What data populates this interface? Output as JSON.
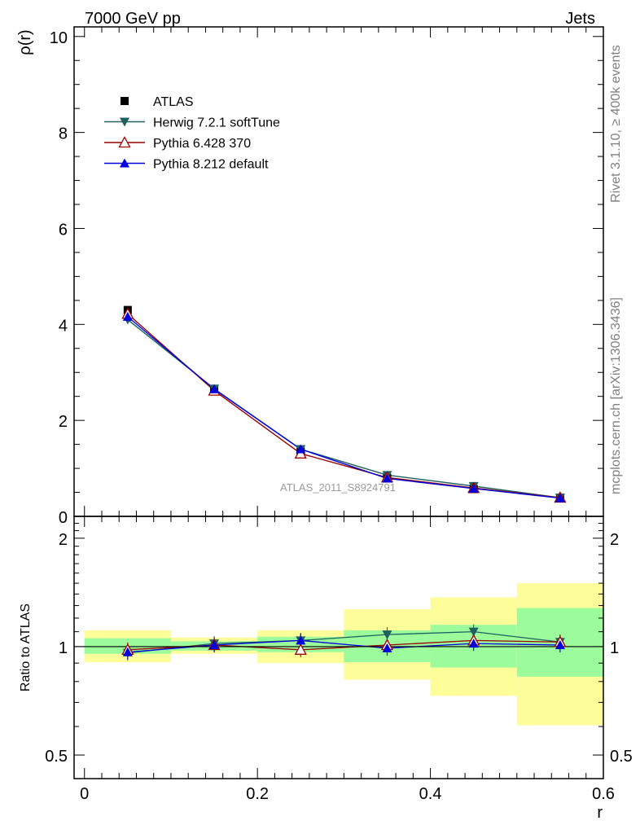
{
  "header": {
    "left": "7000 GeV pp",
    "right": "Jets"
  },
  "side_text": {
    "rivet": "Rivet 3.1.10, ≥ 400k events",
    "mcplots": "mcplots.cern.ch [arXiv:1306.3436]"
  },
  "watermark": "ATLAS_2011_S8924791",
  "colors": {
    "atlas": "#000000",
    "herwig": "#1f6060",
    "pythia6": "#9b0000",
    "pythia8": "#0000dd",
    "band_inner": "#9cfc9c",
    "band_outer": "#fdfd9a"
  },
  "chart_data": [
    {
      "type": "line",
      "name": "main",
      "title": "",
      "xlabel": "",
      "ylabel": "ρ(r)",
      "xlim": [
        -0.012,
        0.6
      ],
      "ylim": [
        0,
        10.2
      ],
      "yticks": [
        0,
        2,
        4,
        6,
        8,
        10
      ],
      "ytick_labels": [
        "0",
        "2",
        "4",
        "6",
        "8",
        "10"
      ],
      "legend_position": "top-left",
      "x": [
        0.05,
        0.15,
        0.25,
        0.35,
        0.45,
        0.55
      ],
      "x_bins": [
        [
          0.0,
          0.1
        ],
        [
          0.1,
          0.2
        ],
        [
          0.2,
          0.3
        ],
        [
          0.3,
          0.4
        ],
        [
          0.4,
          0.5
        ],
        [
          0.5,
          0.6
        ]
      ],
      "series": [
        {
          "key": "atlas",
          "name": "ATLAS",
          "marker": "square",
          "values": [
            4.3,
            2.62,
            1.35,
            0.8,
            0.57,
            0.38
          ]
        },
        {
          "key": "herwig",
          "name": "Herwig 7.2.1 softTune",
          "marker": "triangle-down",
          "values": [
            4.1,
            2.66,
            1.4,
            0.86,
            0.63,
            0.39
          ]
        },
        {
          "key": "pythia6",
          "name": "Pythia 6.428 370",
          "marker": "triangle-up-open",
          "values": [
            4.22,
            2.62,
            1.31,
            0.81,
            0.59,
            0.39
          ]
        },
        {
          "key": "pythia8",
          "name": "Pythia 8.212 default",
          "marker": "triangle-up",
          "values": [
            4.16,
            2.65,
            1.4,
            0.79,
            0.58,
            0.38
          ]
        }
      ]
    },
    {
      "type": "line",
      "name": "ratio",
      "xlabel": "r",
      "ylabel": "Ratio to ATLAS",
      "xlim": [
        -0.012,
        0.6
      ],
      "ylim": [
        0.43,
        2.3
      ],
      "yscale": "log",
      "xticks": [
        0,
        0.2,
        0.4,
        0.6
      ],
      "xtick_labels": [
        "0",
        "0.2",
        "0.4",
        "0.6"
      ],
      "yticks": [
        0.5,
        1,
        2
      ],
      "ytick_labels": [
        "0.5",
        "1",
        "2"
      ],
      "x": [
        0.05,
        0.15,
        0.25,
        0.35,
        0.45,
        0.55
      ],
      "x_bins": [
        [
          0.0,
          0.1
        ],
        [
          0.1,
          0.2
        ],
        [
          0.2,
          0.3
        ],
        [
          0.3,
          0.4
        ],
        [
          0.4,
          0.5
        ],
        [
          0.5,
          0.6
        ]
      ],
      "band_inner": [
        [
          0.955,
          1.055
        ],
        [
          0.975,
          1.035
        ],
        [
          0.965,
          1.065
        ],
        [
          0.905,
          1.11
        ],
        [
          0.875,
          1.15
        ],
        [
          0.825,
          1.28
        ]
      ],
      "band_outer": [
        [
          0.905,
          1.11
        ],
        [
          0.955,
          1.06
        ],
        [
          0.9,
          1.11
        ],
        [
          0.81,
          1.27
        ],
        [
          0.73,
          1.37
        ],
        [
          0.605,
          1.5
        ]
      ],
      "series": [
        {
          "key": "herwig",
          "name": "Herwig 7.2.1 softTune",
          "marker": "triangle-down",
          "values": [
            0.96,
            1.02,
            1.04,
            1.08,
            1.1,
            1.03
          ]
        },
        {
          "key": "pythia6",
          "name": "Pythia 6.428 370",
          "marker": "triangle-up-open",
          "values": [
            0.98,
            1.01,
            0.98,
            1.01,
            1.04,
            1.03
          ]
        },
        {
          "key": "pythia8",
          "name": "Pythia 8.212 default",
          "marker": "triangle-up",
          "values": [
            0.965,
            1.01,
            1.04,
            0.99,
            1.02,
            1.01
          ]
        }
      ]
    }
  ]
}
